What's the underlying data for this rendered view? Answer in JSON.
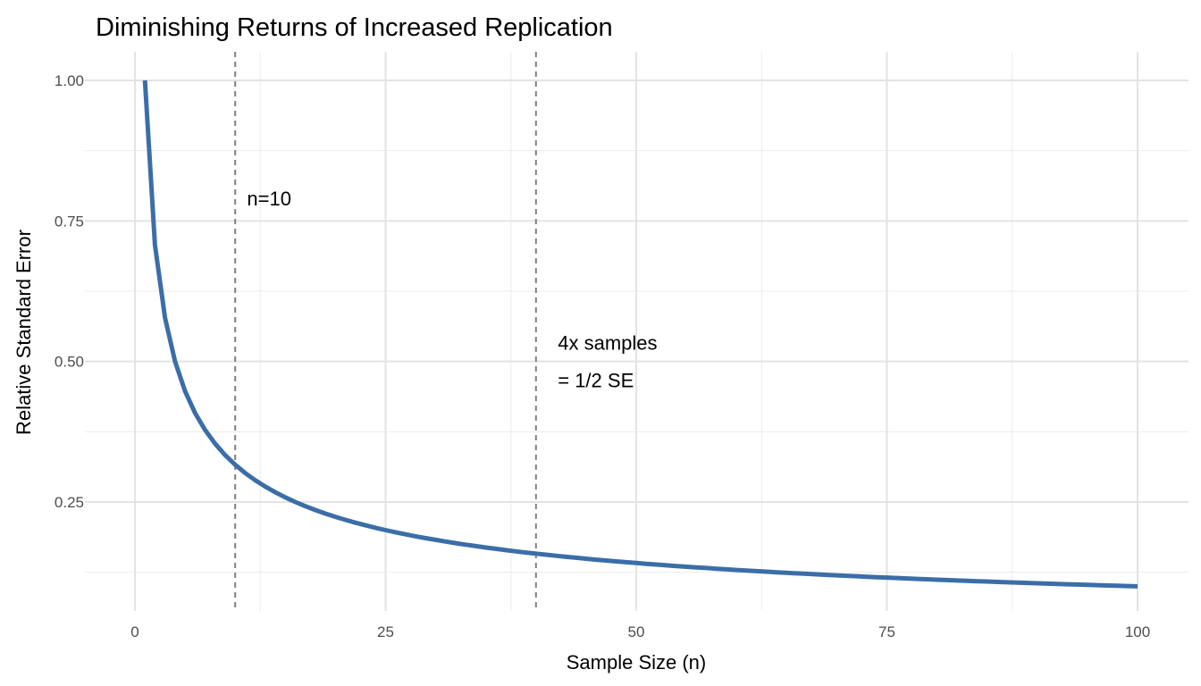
{
  "chart_data": {
    "type": "line",
    "title": "Diminishing Returns of Increased Replication",
    "xlabel": "Sample Size (n)",
    "ylabel": "Relative Standard Error",
    "xlim": [
      -5,
      105
    ],
    "ylim": [
      0.05,
      1.05
    ],
    "grid": true,
    "x_ticks": [
      0,
      25,
      50,
      75,
      100
    ],
    "x_tick_labels": [
      "0",
      "25",
      "50",
      "75",
      "100"
    ],
    "y_ticks": [
      0.25,
      0.5,
      0.75,
      1.0
    ],
    "y_tick_labels": [
      "0.25",
      "0.50",
      "0.75",
      "1.00"
    ],
    "x_minor": [
      12.5,
      37.5,
      62.5,
      87.5
    ],
    "y_minor": [
      0.125,
      0.375,
      0.625,
      0.875
    ],
    "series": [
      {
        "name": "SE",
        "color": "#3b6ea8",
        "x": [
          1,
          2,
          3,
          4,
          5,
          6,
          7,
          8,
          9,
          10,
          11,
          12,
          13,
          14,
          15,
          16,
          17,
          18,
          19,
          20,
          21,
          22,
          23,
          24,
          25,
          26,
          27,
          28,
          29,
          30,
          31,
          32,
          33,
          34,
          35,
          36,
          37,
          38,
          39,
          40,
          41,
          42,
          43,
          44,
          45,
          46,
          47,
          48,
          49,
          50,
          51,
          52,
          53,
          54,
          55,
          56,
          57,
          58,
          59,
          60,
          61,
          62,
          63,
          64,
          65,
          66,
          67,
          68,
          69,
          70,
          71,
          72,
          73,
          74,
          75,
          76,
          77,
          78,
          79,
          80,
          81,
          82,
          83,
          84,
          85,
          86,
          87,
          88,
          89,
          90,
          91,
          92,
          93,
          94,
          95,
          96,
          97,
          98,
          99,
          100
        ],
        "y": [
          1,
          0.7071,
          0.5774,
          0.5,
          0.4472,
          0.4082,
          0.378,
          0.3536,
          0.3333,
          0.3162,
          0.3015,
          0.2887,
          0.2774,
          0.2673,
          0.2582,
          0.25,
          0.2425,
          0.2357,
          0.2294,
          0.2236,
          0.2182,
          0.2132,
          0.2085,
          0.2041,
          0.2,
          0.1961,
          0.1925,
          0.189,
          0.1857,
          0.1826,
          0.1796,
          0.1768,
          0.1741,
          0.1715,
          0.169,
          0.1667,
          0.1644,
          0.1622,
          0.1601,
          0.1581,
          0.1562,
          0.1543,
          0.1525,
          0.1508,
          0.1491,
          0.1474,
          0.1459,
          0.1443,
          0.1429,
          0.1414,
          0.14,
          0.1387,
          0.1374,
          0.1361,
          0.1348,
          0.1336,
          0.1325,
          0.1313,
          0.1302,
          0.1291,
          0.128,
          0.127,
          0.126,
          0.125,
          0.124,
          0.1231,
          0.1222,
          0.1213,
          0.1204,
          0.1195,
          0.1187,
          0.1179,
          0.117,
          0.1162,
          0.1155,
          0.1147,
          0.114,
          0.1132,
          0.1125,
          0.1118,
          0.1111,
          0.1104,
          0.1098,
          0.1091,
          0.1085,
          0.1078,
          0.1072,
          0.1066,
          0.106,
          0.1054,
          0.1048,
          0.1043,
          0.1037,
          0.1031,
          0.1026,
          0.1021,
          0.1015,
          0.101,
          0.1005,
          0.1
        ]
      }
    ],
    "vlines": [
      {
        "x": 10,
        "color": "#808080",
        "style": "dashed"
      },
      {
        "x": 40,
        "color": "#808080",
        "style": "dashed"
      }
    ],
    "annotations": [
      {
        "x": 11,
        "y": 0.79,
        "lines": [
          "n=10"
        ]
      },
      {
        "x": 42,
        "y": 0.5,
        "lines": [
          " 4x samples",
          "= 1/2 SE"
        ]
      }
    ]
  }
}
